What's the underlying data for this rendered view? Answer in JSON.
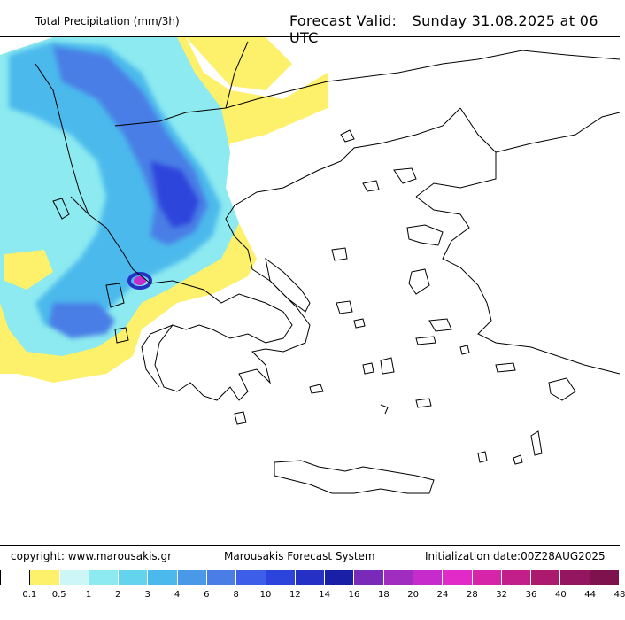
{
  "header": {
    "title": "Total Precipitation (mm/3h)",
    "forecast_label": "Forecast Valid:",
    "forecast_value": "Sunday 31.08.2025 at 06 UTC"
  },
  "footer": {
    "copyright": "copyright: www.marousakis.gr",
    "system": "Marousakis Forecast System",
    "init": "Initialization date:00Z28AUG2025"
  },
  "legend": {
    "colors": [
      "#ffffff",
      "#fdf06a",
      "#cdf7f7",
      "#8ceaf0",
      "#63d3ee",
      "#4cb9ec",
      "#4a99e8",
      "#4a7ee6",
      "#3c5ee8",
      "#2d44dc",
      "#2530c4",
      "#1a1fa8",
      "#7a2ab8",
      "#a12cc0",
      "#c62bcc",
      "#e22ac8",
      "#d625a8",
      "#c21f8a",
      "#ac1a70",
      "#951660",
      "#7d124f"
    ],
    "labels": [
      "0.1",
      "0.5",
      "1",
      "2",
      "3",
      "4",
      "6",
      "8",
      "10",
      "12",
      "14",
      "16",
      "18",
      "20",
      "24",
      "28",
      "32",
      "36",
      "40",
      "44",
      "48"
    ]
  }
}
